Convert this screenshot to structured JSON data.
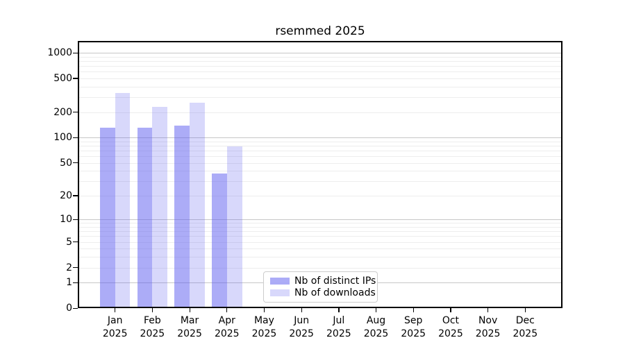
{
  "chart_data": {
    "type": "bar",
    "title": "rsemmed 2025",
    "year_label": "2025",
    "months": [
      "Jan",
      "Feb",
      "Mar",
      "Apr",
      "May",
      "Jun",
      "Jul",
      "Aug",
      "Sep",
      "Oct",
      "Nov",
      "Dec"
    ],
    "series": [
      {
        "name": "Nb of distinct IPs",
        "color": "rgba(90,90,240,0.5)",
        "values": [
          132,
          130,
          139,
          37,
          0,
          0,
          0,
          0,
          0,
          0,
          0,
          0
        ]
      },
      {
        "name": "Nb of downloads",
        "color": "rgba(90,90,240,0.24)",
        "values": [
          337,
          232,
          259,
          78,
          0,
          0,
          0,
          0,
          0,
          0,
          0,
          0
        ]
      }
    ],
    "yscale": "log1p",
    "ylim": [
      0,
      1380
    ],
    "yticks": [
      0,
      1,
      2,
      5,
      10,
      20,
      50,
      100,
      200,
      500,
      1000
    ],
    "major_grid_values": [
      1,
      10,
      100,
      1000
    ],
    "grid": {
      "orientation": "horizontal",
      "major_color": "#c7c7c7",
      "minor_color": "#ededed"
    },
    "legend": {
      "position": "lower center",
      "border_color": "#cccccc",
      "background": "#ffffff"
    },
    "colors": {
      "axis": "#000000",
      "background": "#ffffff",
      "text": "#000000"
    }
  }
}
